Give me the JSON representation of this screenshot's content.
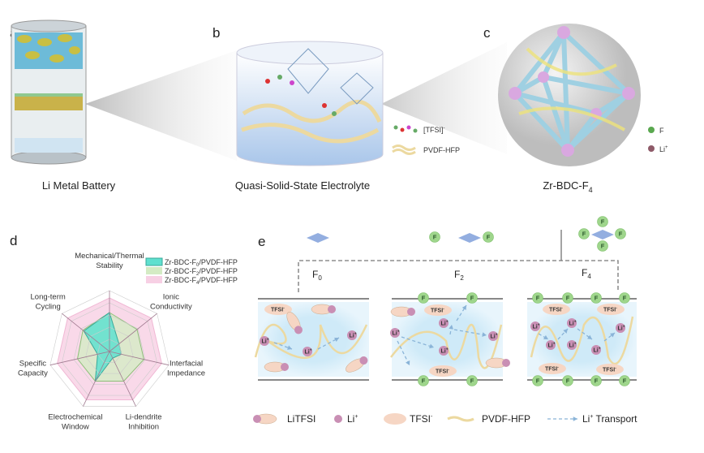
{
  "panels": {
    "a": {
      "letter": "a",
      "caption": "Li Metal Battery"
    },
    "b": {
      "letter": "b",
      "caption": "Quasi-Solid-State Electrolyte",
      "legend": [
        "[TFSI]",
        "PVDF-HFP"
      ],
      "tfsi_sup": "-"
    },
    "c": {
      "letter": "c",
      "caption": "Zr-BDC-F",
      "caption_sub": "4",
      "legend": [
        "F",
        "Li"
      ],
      "li_sup": "+"
    },
    "d": {
      "letter": "d",
      "chart_data": {
        "type": "radar",
        "axes": [
          "Mechanical/Thermal Stability",
          "Ionic Conductivity",
          "Interfacial Impedance",
          "Li-dendrite Inhibition",
          "Electrochemical Window",
          "Specific Capacity",
          "Long-term Cycling"
        ],
        "axis_lines": [
          [
            "Mechanical/Thermal",
            "Stability"
          ],
          [
            "Ionic",
            "Conductivity"
          ],
          [
            "Interfacial",
            "Impedance"
          ],
          [
            "Li-dendrite",
            "Inhibition"
          ],
          [
            "Electrochemical",
            "Window"
          ],
          [
            "Specific",
            "Capacity"
          ],
          [
            "Long-term",
            "Cycling"
          ]
        ],
        "rmax": 5,
        "rings": 5,
        "series": [
          {
            "name": "Zr-BDC-F0/PVDF-HFP",
            "label": "Zr-BDC-F",
            "sub": "0",
            "suffix": "/PVDF-HFP",
            "color": "#5fe0cf",
            "values": [
              3.2,
              1.0,
              1.0,
              0.6,
              2.7,
              1.0,
              2.7
            ]
          },
          {
            "name": "Zr-BDC-F2/PVDF-HFP",
            "label": "Zr-BDC-F",
            "sub": "2",
            "suffix": "/PVDF-HFP",
            "color": "#d4ebc4",
            "values": [
              3.2,
              2.9,
              2.9,
              2.7,
              2.7,
              2.7,
              2.8
            ]
          },
          {
            "name": "Zr-BDC-F4/PVDF-HFP",
            "label": "Zr-BDC-F",
            "sub": "4",
            "suffix": "/PVDF-HFP",
            "color": "#f7d0e4",
            "values": [
              4.4,
              4.4,
              4.4,
              4.4,
              4.4,
              4.4,
              4.4
            ]
          }
        ]
      }
    },
    "e": {
      "letter": "e",
      "groups": [
        {
          "label": "F",
          "sub": "0"
        },
        {
          "label": "F",
          "sub": "2"
        },
        {
          "label": "F",
          "sub": "4"
        }
      ],
      "f": "F",
      "tfsi": "TFSI",
      "li": "Li",
      "sup_minus": "-",
      "sup_plus": "+",
      "legend": [
        {
          "label": "LiTFSI"
        },
        {
          "label": "Li",
          "sup": "+"
        },
        {
          "label": "TFSI",
          "sup": "-"
        },
        {
          "label": "PVDF-HFP"
        },
        {
          "label": "Li",
          "sup": "+",
          "suffix": " Transport"
        }
      ]
    }
  },
  "colors": {
    "li": "#c98fb4",
    "f": "#9fd68c",
    "tfsi": "#f6d6c4",
    "electrolyte": "#cfeaf8",
    "polymer": "#ecd9a0",
    "mof": "#a8d8e8",
    "arrow": "#8ab4d8"
  }
}
